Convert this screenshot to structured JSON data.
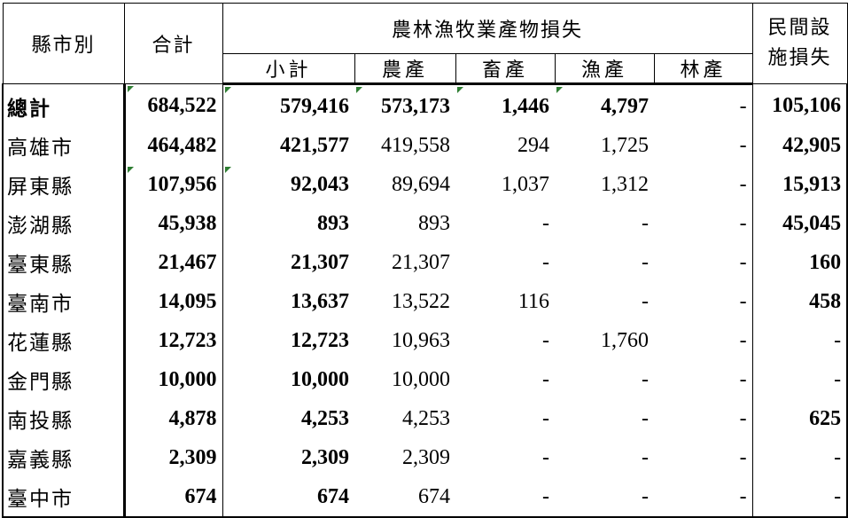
{
  "header": {
    "region": "縣市別",
    "total": "合計",
    "group": "農林漁牧業產物損失",
    "subtotal": "小計",
    "agriculture": "農產",
    "livestock": "畜產",
    "fishery": "漁產",
    "forestry": "林產",
    "private_line1": "民間設",
    "private_line2": "施損失"
  },
  "rows": [
    {
      "region": "總計",
      "total": "684,522",
      "subtotal": "579,416",
      "agriculture": "573,173",
      "livestock": "1,446",
      "fishery": "4,797",
      "forestry": "-",
      "private": "105,106"
    },
    {
      "region": "高雄市",
      "total": "464,482",
      "subtotal": "421,577",
      "agriculture": "419,558",
      "livestock": "294",
      "fishery": "1,725",
      "forestry": "-",
      "private": "42,905"
    },
    {
      "region": "屏東縣",
      "total": "107,956",
      "subtotal": "92,043",
      "agriculture": "89,694",
      "livestock": "1,037",
      "fishery": "1,312",
      "forestry": "-",
      "private": "15,913"
    },
    {
      "region": "澎湖縣",
      "total": "45,938",
      "subtotal": "893",
      "agriculture": "893",
      "livestock": "-",
      "fishery": "-",
      "forestry": "-",
      "private": "45,045"
    },
    {
      "region": "臺東縣",
      "total": "21,467",
      "subtotal": "21,307",
      "agriculture": "21,307",
      "livestock": "-",
      "fishery": "-",
      "forestry": "-",
      "private": "160"
    },
    {
      "region": "臺南市",
      "total": "14,095",
      "subtotal": "13,637",
      "agriculture": "13,522",
      "livestock": "116",
      "fishery": "-",
      "forestry": "-",
      "private": "458"
    },
    {
      "region": "花蓮縣",
      "total": "12,723",
      "subtotal": "12,723",
      "agriculture": "10,963",
      "livestock": "-",
      "fishery": "1,760",
      "forestry": "-",
      "private": "-"
    },
    {
      "region": "金門縣",
      "total": "10,000",
      "subtotal": "10,000",
      "agriculture": "10,000",
      "livestock": "-",
      "fishery": "-",
      "forestry": "-",
      "private": "-"
    },
    {
      "region": "南投縣",
      "total": "4,878",
      "subtotal": "4,253",
      "agriculture": "4,253",
      "livestock": "-",
      "fishery": "-",
      "forestry": "-",
      "private": "625"
    },
    {
      "region": "嘉義縣",
      "total": "2,309",
      "subtotal": "2,309",
      "agriculture": "2,309",
      "livestock": "-",
      "fishery": "-",
      "forestry": "-",
      "private": "-"
    },
    {
      "region": "臺中市",
      "total": "674",
      "subtotal": "674",
      "agriculture": "674",
      "livestock": "-",
      "fishery": "-",
      "forestry": "-",
      "private": "-"
    }
  ],
  "colors": {
    "border": "#000000",
    "error_marker": "#2e7d32"
  }
}
